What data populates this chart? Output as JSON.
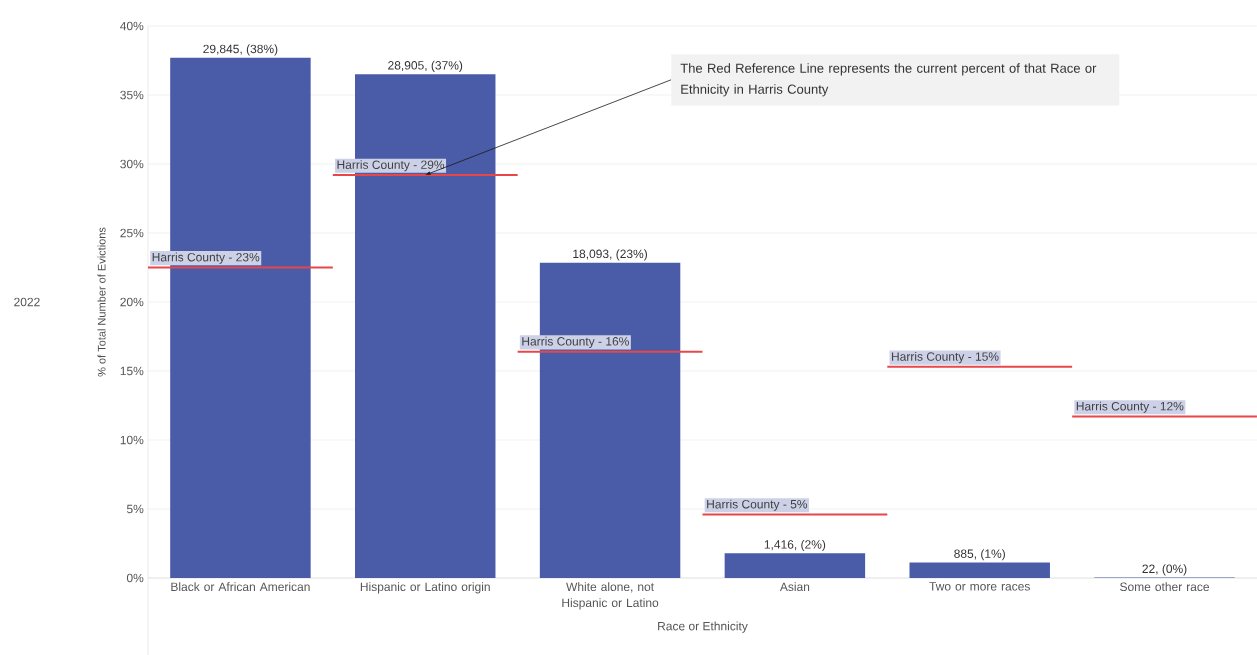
{
  "chart_data": {
    "type": "bar",
    "categories": [
      "Black or African American",
      "Hispanic or Latino origin",
      "White alone, not Hispanic or Latino",
      "Asian",
      "Two or more races",
      "Some other race"
    ],
    "values": [
      37.7,
      36.51,
      22.85,
      1.79,
      1.12,
      0.03
    ],
    "value_labels": [
      "29,845, (38%)",
      "28,905, (37%)",
      "18,093, (23%)",
      "1,416, (2%)",
      "885, (1%)",
      "22, (0%)"
    ],
    "color": "#4a5ca8",
    "xlabel": "Race or Ethnicity",
    "ylabel": "% of Total Number of Evictions",
    "ylim": [
      0,
      40
    ],
    "yticks": [
      {
        "value": 0,
        "label": "0%"
      },
      {
        "value": 5,
        "label": "5%"
      },
      {
        "value": 10,
        "label": "10%"
      },
      {
        "value": 15,
        "label": "15%"
      },
      {
        "value": 20,
        "label": "20%"
      },
      {
        "value": 25,
        "label": "25%"
      },
      {
        "value": 30,
        "label": "30%"
      },
      {
        "value": 35,
        "label": "35%"
      },
      {
        "value": 40,
        "label": "40%"
      }
    ],
    "grid": "y",
    "ref_lines": [
      {
        "axis": "y",
        "value": 22.5,
        "label": "Harris County - 23%",
        "color": "#e8474a"
      },
      {
        "axis": "y",
        "value": 29.2,
        "label": "Harris County - 29%",
        "color": "#e8474a"
      },
      {
        "axis": "y",
        "value": 16.4,
        "label": "Harris County - 16%",
        "color": "#e8474a"
      },
      {
        "axis": "y",
        "value": 4.6,
        "label": "Harris County - 5%",
        "color": "#e8474a"
      },
      {
        "axis": "y",
        "value": 15.3,
        "label": "Harris County - 15%",
        "color": "#e8474a"
      },
      {
        "axis": "y",
        "value": 11.7,
        "label": "Harris County - 12%",
        "color": "#e8474a"
      }
    ],
    "annotations": [
      "2022",
      {
        "text": "The Red Reference Line represents the current percent of that Race or Ethnicity in Harris County",
        "x": "Hispanic or Latino origin",
        "y": 29.2
      }
    ]
  }
}
